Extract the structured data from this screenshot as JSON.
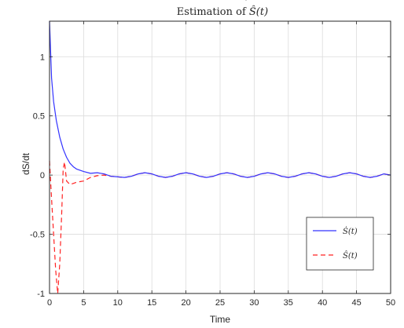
{
  "chart_data": {
    "type": "line",
    "title_prefix": "Estimation of ",
    "title_math": "Ŝ(t)",
    "title_math_hat": "˙",
    "xlabel": "Time",
    "ylabel": "dS/dt",
    "xlim": [
      0,
      50
    ],
    "ylim": [
      -1,
      1.3
    ],
    "xticks": [
      0,
      5,
      10,
      15,
      20,
      25,
      30,
      35,
      40,
      45,
      50
    ],
    "yticks": [
      -1,
      -0.5,
      0,
      0.5,
      1
    ],
    "ytick_labels": [
      "-1",
      "-0.5",
      "0",
      "0.5",
      "1"
    ],
    "grid": true,
    "legend_position": "bottom-right",
    "series": [
      {
        "name": "Ṡ(t)",
        "color": "#3333ff",
        "style": "solid",
        "x": [
          0,
          0.3,
          0.6,
          1,
          1.5,
          2,
          2.5,
          3,
          3.5,
          4,
          5,
          6,
          7,
          8,
          9,
          10,
          11,
          12,
          13,
          14,
          15,
          16,
          17,
          18,
          19,
          20,
          21,
          22,
          23,
          24,
          25,
          26,
          27,
          28,
          29,
          30,
          31,
          32,
          33,
          34,
          35,
          36,
          37,
          38,
          39,
          40,
          41,
          42,
          43,
          44,
          45,
          46,
          47,
          48,
          49,
          50
        ],
        "y": [
          1.3,
          0.82,
          0.62,
          0.46,
          0.32,
          0.22,
          0.15,
          0.1,
          0.07,
          0.05,
          0.03,
          0.015,
          0.02,
          0.01,
          -0.01,
          -0.015,
          -0.02,
          -0.01,
          0.01,
          0.02,
          0.01,
          -0.01,
          -0.02,
          -0.01,
          0.01,
          0.02,
          0.01,
          -0.01,
          -0.02,
          -0.01,
          0.01,
          0.02,
          0.01,
          -0.01,
          -0.02,
          -0.01,
          0.01,
          0.02,
          0.01,
          -0.01,
          -0.02,
          -0.01,
          0.01,
          0.02,
          0.01,
          -0.01,
          -0.02,
          -0.01,
          0.01,
          0.02,
          0.01,
          -0.01,
          -0.02,
          -0.01,
          0.01,
          0.0
        ]
      },
      {
        "name": "Ŝ(t)",
        "color": "#ff2222",
        "style": "dashed",
        "x": [
          0,
          0.3,
          0.6,
          0.9,
          1.2,
          1.5,
          1.8,
          2.0,
          2.2,
          2.5,
          3,
          3.5,
          4,
          5,
          6,
          7,
          8,
          9,
          10,
          11,
          12,
          13,
          14,
          15,
          16,
          17,
          18,
          19,
          20,
          21,
          22,
          23,
          24,
          25,
          26,
          27,
          28,
          29,
          30,
          31,
          32,
          33,
          34,
          35,
          36,
          37,
          38,
          39,
          40,
          41,
          42,
          43,
          44,
          45,
          46,
          47,
          48,
          49,
          50
        ],
        "y": [
          0.12,
          -0.2,
          -0.5,
          -0.8,
          -1.0,
          -0.75,
          -0.3,
          0.05,
          0.11,
          -0.05,
          -0.08,
          -0.07,
          -0.06,
          -0.05,
          -0.02,
          -0.005,
          0.0,
          -0.01,
          -0.015,
          -0.02,
          -0.01,
          0.01,
          0.02,
          0.01,
          -0.01,
          -0.02,
          -0.01,
          0.01,
          0.02,
          0.01,
          -0.01,
          -0.02,
          -0.01,
          0.01,
          0.02,
          0.01,
          -0.01,
          -0.02,
          -0.01,
          0.01,
          0.02,
          0.01,
          -0.01,
          -0.02,
          -0.01,
          0.01,
          0.02,
          0.01,
          -0.01,
          -0.02,
          -0.01,
          0.01,
          0.02,
          0.01,
          -0.01,
          -0.02,
          -0.01,
          0.01,
          0.0
        ]
      }
    ]
  }
}
